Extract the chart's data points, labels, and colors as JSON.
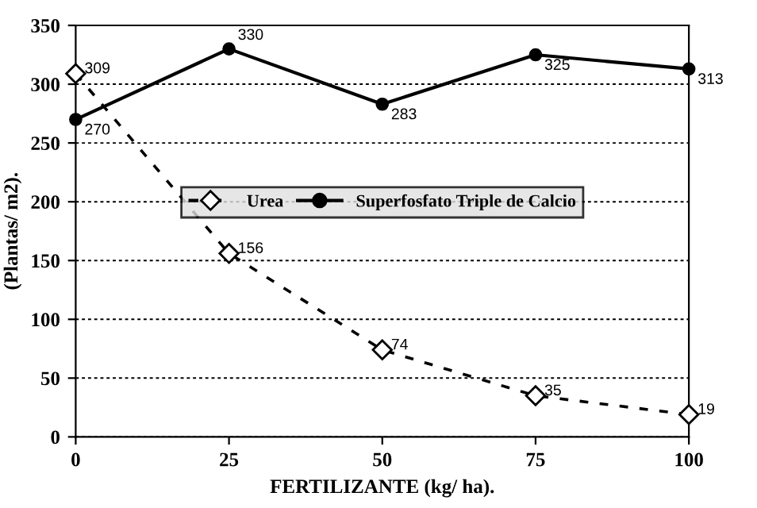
{
  "chart_data": {
    "type": "line",
    "xlabel": "FERTILIZANTE (kg/ ha).",
    "ylabel": "(Plantas/ m2).",
    "x": [
      0,
      25,
      50,
      75,
      100
    ],
    "series": [
      {
        "name": "Urea",
        "color": "#000000",
        "marker": "diamond",
        "line_style": "dashed",
        "values": [
          309,
          156,
          74,
          35,
          19
        ]
      },
      {
        "name": "Superfosfato Triple de Calcio",
        "color": "#000000",
        "marker": "circle",
        "line_style": "solid",
        "values": [
          270,
          330,
          283,
          325,
          313
        ]
      }
    ],
    "xlim": [
      0,
      100
    ],
    "xticks": [
      0,
      25,
      50,
      75,
      100
    ],
    "ylim": [
      0,
      350
    ],
    "yticks": [
      0,
      50,
      100,
      150,
      200,
      250,
      300,
      350
    ],
    "grid": "y",
    "legend": "center",
    "data_labels": true
  }
}
